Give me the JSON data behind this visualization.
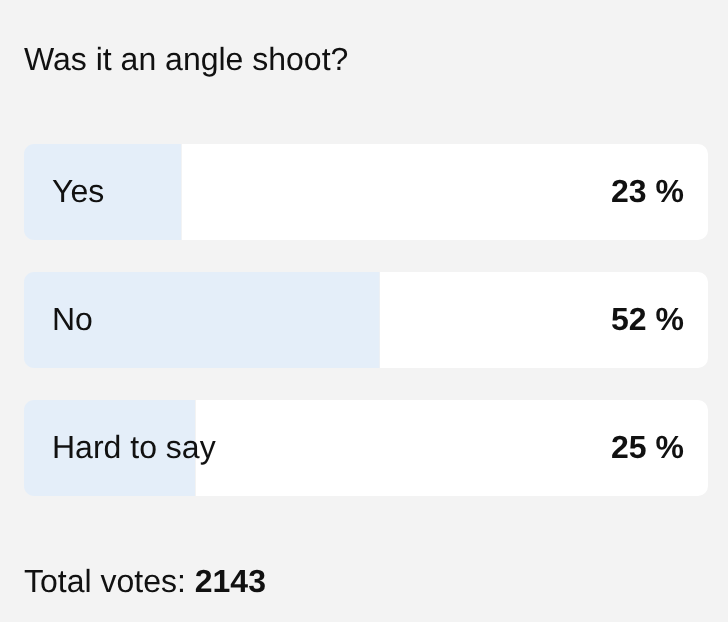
{
  "chart_data": {
    "type": "bar",
    "orientation": "horizontal",
    "title": "Was it an angle shoot?",
    "categories": [
      "Yes",
      "No",
      "Hard to say"
    ],
    "values": [
      23,
      52,
      25
    ],
    "value_labels": [
      "23 %",
      "52 %",
      "25 %"
    ],
    "color": "#e4eef9",
    "xlim": [
      0,
      100
    ],
    "tick_labels": false,
    "annotations": [
      "Total votes: 2143"
    ]
  }
}
